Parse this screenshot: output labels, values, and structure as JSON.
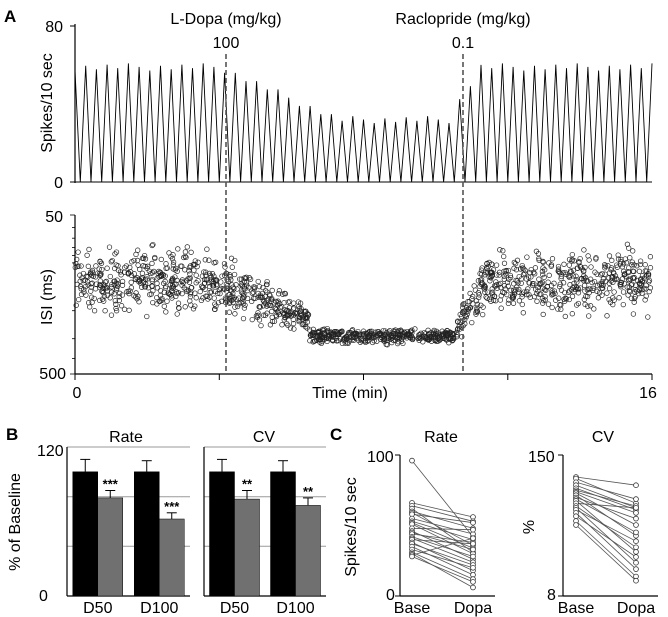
{
  "panel_labels": {
    "a": "A",
    "b": "B",
    "c": "C"
  },
  "chart_data": [
    {
      "id": "A-rate-trace",
      "type": "line",
      "ylabel": "Spikes/10 sec",
      "yticks": [
        "80",
        "0"
      ],
      "ylim": [
        0,
        80
      ],
      "xlim": [
        0,
        16
      ],
      "annotations": [
        {
          "label": "L-Dopa (mg/kg)",
          "dose": "100",
          "x": 4
        },
        {
          "label": "Raclopride (mg/kg)",
          "dose": "0.1",
          "x": 10.6
        }
      ],
      "segments": [
        {
          "x_start": 0,
          "x_end": 4,
          "peak": 59
        },
        {
          "x_start": 4,
          "x_end": 7.3,
          "peak_start": 59,
          "peak_end": 32
        },
        {
          "x_start": 7.3,
          "x_end": 10.6,
          "peak": 32
        },
        {
          "x_start": 10.6,
          "x_end": 11.3,
          "peak_start": 40,
          "peak_end": 60
        },
        {
          "x_start": 11.3,
          "x_end": 16,
          "peak": 59
        }
      ]
    },
    {
      "id": "A-isi-scatter",
      "type": "scatter",
      "ylabel": "ISI (ms)",
      "yscale": "log",
      "yticks": [
        "50",
        "500"
      ],
      "ylim": [
        500,
        50
      ],
      "xlabel": "Time (min)",
      "xticks": [
        "0",
        "16"
      ],
      "xlim": [
        0,
        16
      ],
      "bands": [
        {
          "x_start": 0,
          "x_end": 4,
          "center": 0.42,
          "spread": 0.17
        },
        {
          "x_start": 4,
          "x_end": 6.5,
          "center_start": 0.42,
          "center_end": 0.66,
          "spread_start": 0.17,
          "spread_end": 0.06
        },
        {
          "x_start": 6.5,
          "x_end": 10.6,
          "center": 0.76,
          "spread": 0.04
        },
        {
          "x_start": 10.6,
          "x_end": 11.4,
          "center_start": 0.7,
          "center_end": 0.45,
          "spread_start": 0.08,
          "spread_end": 0.16
        },
        {
          "x_start": 11.4,
          "x_end": 16,
          "center": 0.42,
          "spread": 0.17
        }
      ]
    },
    {
      "id": "B-rate",
      "type": "bar",
      "title": "Rate",
      "ylabel": "% of Baseline",
      "yticks": [
        "120",
        "0"
      ],
      "ylim": [
        0,
        120
      ],
      "categories": [
        "D50",
        "D100"
      ],
      "series": [
        {
          "color": "#000000",
          "values": [
            100,
            100
          ],
          "errors": [
            10,
            9
          ]
        },
        {
          "color": "#707070",
          "values": [
            79,
            62
          ],
          "errors": [
            6,
            5
          ]
        }
      ],
      "significance": [
        "***",
        "***"
      ]
    },
    {
      "id": "B-cv",
      "type": "bar",
      "title": "CV",
      "ylim": [
        0,
        120
      ],
      "categories": [
        "D50",
        "D100"
      ],
      "series": [
        {
          "color": "#000000",
          "values": [
            100,
            100
          ],
          "errors": [
            10,
            9
          ]
        },
        {
          "color": "#707070",
          "values": [
            78,
            73
          ],
          "errors": [
            7,
            6
          ]
        }
      ],
      "significance": [
        "**",
        "**"
      ]
    },
    {
      "id": "C-rate",
      "type": "line",
      "title": "Rate",
      "ylabel": "Spikes/10 sec",
      "yticks": [
        "100",
        "0"
      ],
      "ylim": [
        0,
        100
      ],
      "categories": [
        "Base",
        "Dopa"
      ],
      "pairs": [
        [
          96,
          42
        ],
        [
          66,
          56
        ],
        [
          64,
          53
        ],
        [
          62,
          31
        ],
        [
          60,
          48
        ],
        [
          59,
          36
        ],
        [
          58,
          52
        ],
        [
          55,
          44
        ],
        [
          53,
          40
        ],
        [
          52,
          34
        ],
        [
          51,
          30
        ],
        [
          48,
          47
        ],
        [
          46,
          26
        ],
        [
          45,
          33
        ],
        [
          44,
          38
        ],
        [
          42,
          28
        ],
        [
          41,
          24
        ],
        [
          40,
          37
        ],
        [
          38,
          18
        ],
        [
          37,
          22
        ],
        [
          35,
          15
        ],
        [
          33,
          20
        ],
        [
          31,
          12
        ],
        [
          30,
          6
        ],
        [
          29,
          41
        ],
        [
          28,
          10
        ]
      ]
    },
    {
      "id": "C-cv",
      "type": "line",
      "title": "CV",
      "ylabel": "%",
      "yscale": "log",
      "yticks": [
        "150",
        "8"
      ],
      "ylim": [
        8,
        150
      ],
      "categories": [
        "Base",
        "Dopa"
      ],
      "pairs": [
        [
          95,
          80
        ],
        [
          92,
          55
        ],
        [
          85,
          60
        ],
        [
          80,
          50
        ],
        [
          75,
          48
        ],
        [
          72,
          52
        ],
        [
          70,
          45
        ],
        [
          68,
          35
        ],
        [
          65,
          28
        ],
        [
          62,
          40
        ],
        [
          60,
          30
        ],
        [
          58,
          20
        ],
        [
          55,
          50
        ],
        [
          52,
          22
        ],
        [
          50,
          16
        ],
        [
          48,
          25
        ],
        [
          45,
          14
        ],
        [
          42,
          18
        ],
        [
          38,
          12
        ],
        [
          35,
          11
        ]
      ]
    }
  ]
}
